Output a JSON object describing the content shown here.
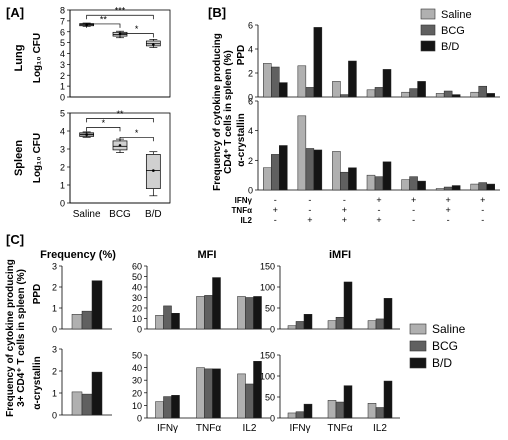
{
  "colors": {
    "saline": "#b0b0b0",
    "bcg": "#606060",
    "bd": "#141414",
    "box_gray": "#9a9a9a",
    "box_light": "#d0d0d0"
  },
  "panel_labels": {
    "a": "[A]",
    "b": "[B]",
    "c": "[C]"
  },
  "legend": [
    "Saline",
    "BCG",
    "B/D"
  ],
  "chart_data": [
    {
      "id": "A-lung",
      "type": "box",
      "row_label": "Lung",
      "ylabel": "Log₁₀ CFU",
      "ylim": [
        0,
        8
      ],
      "yticks": [
        "0",
        "1",
        "2",
        "3",
        "4",
        "5",
        "6",
        "7",
        "8"
      ],
      "categories": [
        "Saline",
        "BCG",
        "B/D"
      ],
      "boxes": [
        {
          "min": 6.5,
          "q1": 6.55,
          "median": 6.65,
          "q3": 6.75,
          "max": 6.8,
          "mean": 6.65
        },
        {
          "min": 5.45,
          "q1": 5.6,
          "median": 5.75,
          "q3": 5.95,
          "max": 6.05,
          "mean": 5.8
        },
        {
          "min": 4.55,
          "q1": 4.7,
          "median": 4.9,
          "q3": 5.15,
          "max": 5.3,
          "mean": 4.85
        }
      ],
      "significance": [
        {
          "from": 0,
          "to": 2,
          "label": "***"
        },
        {
          "from": 0,
          "to": 1,
          "label": "**"
        },
        {
          "from": 1,
          "to": 2,
          "label": "*"
        }
      ]
    },
    {
      "id": "A-spleen",
      "type": "box",
      "row_label": "Spleen",
      "ylabel": "Log₁₀ CFU",
      "ylim": [
        0,
        5
      ],
      "yticks": [
        "0",
        "1",
        "2",
        "3",
        "4",
        "5"
      ],
      "categories": [
        "Saline",
        "BCG",
        "B/D"
      ],
      "boxes": [
        {
          "min": 3.65,
          "q1": 3.7,
          "median": 3.8,
          "q3": 3.9,
          "max": 3.95,
          "mean": 3.8
        },
        {
          "min": 2.8,
          "q1": 2.95,
          "median": 3.15,
          "q3": 3.45,
          "max": 3.55,
          "mean": 3.2
        },
        {
          "min": 0.4,
          "q1": 0.8,
          "median": 1.8,
          "q3": 2.7,
          "max": 2.85,
          "mean": 1.8
        }
      ],
      "significance": [
        {
          "from": 0,
          "to": 2,
          "label": "**"
        },
        {
          "from": 0,
          "to": 1,
          "label": "*"
        },
        {
          "from": 1,
          "to": 2,
          "label": "*"
        }
      ]
    },
    {
      "id": "B-PPD",
      "type": "bar",
      "row_label": "PPD",
      "ylim": [
        0,
        6
      ],
      "yticks": [
        "0",
        "2",
        "4",
        "6"
      ],
      "series": [
        {
          "name": "Saline",
          "values": [
            2.8,
            2.6,
            1.3,
            0.6,
            0.4,
            0.3,
            0.4
          ]
        },
        {
          "name": "BCG",
          "values": [
            2.5,
            0.8,
            0.2,
            0.8,
            0.7,
            0.5,
            0.9
          ]
        },
        {
          "name": "B/D",
          "values": [
            1.2,
            5.8,
            3.0,
            2.3,
            1.3,
            0.2,
            0.3
          ]
        }
      ]
    },
    {
      "id": "B-acryst",
      "type": "bar",
      "row_label": "α-crystallin",
      "ylim": [
        0,
        6
      ],
      "yticks": [
        "0",
        "2",
        "4",
        "6"
      ],
      "series": [
        {
          "name": "Saline",
          "values": [
            1.5,
            5.0,
            2.6,
            1.0,
            0.7,
            0.1,
            0.4
          ]
        },
        {
          "name": "BCG",
          "values": [
            2.4,
            2.8,
            1.2,
            0.9,
            0.9,
            0.2,
            0.5
          ]
        },
        {
          "name": "B/D",
          "values": [
            3.0,
            2.7,
            1.5,
            1.9,
            0.6,
            0.3,
            0.4
          ]
        }
      ]
    },
    {
      "id": "C-freq-PPD",
      "type": "bar",
      "ylim": [
        0,
        3
      ],
      "yticks": [
        "0",
        "1",
        "2",
        "3"
      ],
      "series": [
        {
          "name": "Saline",
          "values": [
            0.7
          ]
        },
        {
          "name": "BCG",
          "values": [
            0.85
          ]
        },
        {
          "name": "B/D",
          "values": [
            2.3
          ]
        }
      ]
    },
    {
      "id": "C-MFI-PPD",
      "type": "bar",
      "ylim": [
        0,
        60
      ],
      "yticks": [
        "0",
        "10",
        "20",
        "30",
        "40",
        "50",
        "60"
      ],
      "categories": [
        "IFNγ",
        "TNFα",
        "IL2"
      ],
      "series": [
        {
          "name": "Saline",
          "values": [
            13,
            31,
            31
          ]
        },
        {
          "name": "BCG",
          "values": [
            22,
            32,
            30
          ]
        },
        {
          "name": "B/D",
          "values": [
            15,
            49,
            31
          ]
        }
      ]
    },
    {
      "id": "C-iMFI-PPD",
      "type": "bar",
      "ylim": [
        0,
        150
      ],
      "yticks": [
        "0",
        "50",
        "100",
        "150"
      ],
      "categories": [
        "IFNγ",
        "TNFα",
        "IL2"
      ],
      "series": [
        {
          "name": "Saline",
          "values": [
            8,
            20,
            20
          ]
        },
        {
          "name": "BCG",
          "values": [
            18,
            28,
            24
          ]
        },
        {
          "name": "B/D",
          "values": [
            35,
            112,
            73
          ]
        }
      ]
    },
    {
      "id": "C-freq-acryst",
      "type": "bar",
      "ylim": [
        0,
        3
      ],
      "yticks": [
        "0",
        "1",
        "2",
        "3"
      ],
      "series": [
        {
          "name": "Saline",
          "values": [
            1.05
          ]
        },
        {
          "name": "BCG",
          "values": [
            0.95
          ]
        },
        {
          "name": "B/D",
          "values": [
            1.95
          ]
        }
      ]
    },
    {
      "id": "C-MFI-acryst",
      "type": "bar",
      "ylim": [
        0,
        50
      ],
      "yticks": [
        "0",
        "10",
        "20",
        "30",
        "40",
        "50"
      ],
      "categories": [
        "IFNγ",
        "TNFα",
        "IL2"
      ],
      "series": [
        {
          "name": "Saline",
          "values": [
            13,
            40,
            35
          ]
        },
        {
          "name": "BCG",
          "values": [
            17,
            39,
            27
          ]
        },
        {
          "name": "B/D",
          "values": [
            18,
            39,
            45
          ]
        }
      ]
    },
    {
      "id": "C-iMFI-acryst",
      "type": "bar",
      "ylim": [
        0,
        150
      ],
      "yticks": [
        "0",
        "50",
        "100",
        "150"
      ],
      "categories": [
        "IFNγ",
        "TNFα",
        "IL2"
      ],
      "series": [
        {
          "name": "Saline",
          "values": [
            12,
            42,
            35
          ]
        },
        {
          "name": "BCG",
          "values": [
            15,
            38,
            25
          ]
        },
        {
          "name": "B/D",
          "values": [
            33,
            77,
            88
          ]
        }
      ]
    }
  ],
  "panel_b": {
    "ylabel_line1": "Frequency of cytokine producing",
    "ylabel_line2": "CD4⁺ T cells in spleen (%)",
    "rows": [
      {
        "label": "IFNγ",
        "signs": [
          "-",
          "-",
          "-",
          "+",
          "+",
          "+",
          "+"
        ]
      },
      {
        "label": "TNFα",
        "signs": [
          "+",
          "-",
          "+",
          "-",
          "-",
          "+",
          "-"
        ]
      },
      {
        "label": "IL2",
        "signs": [
          "-",
          "+",
          "+",
          "+",
          "-",
          "-",
          "-"
        ]
      }
    ]
  },
  "panel_c": {
    "col_titles": [
      "Frequency (%)",
      "MFI",
      "iMFI"
    ],
    "row_labels": [
      "PPD",
      "α-crystallin"
    ],
    "ylabel_line1": "Frequency of cytokine producing",
    "ylabel_line2": "3+ CD4⁺ T cells in spleen (%)"
  }
}
